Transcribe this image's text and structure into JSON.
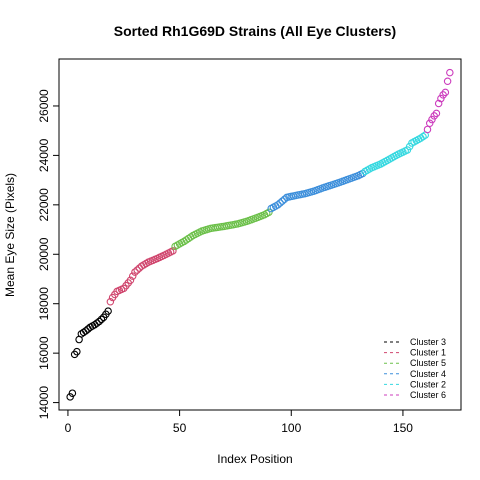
{
  "chart_data": {
    "type": "scatter",
    "title": "Sorted Rh1G69D Strains (All Eye Clusters)",
    "xlabel": "Index Position",
    "ylabel": "Mean Eye Size (Pixels)",
    "xlim": [
      -4,
      176
    ],
    "ylim": [
      13700,
      27900
    ],
    "xticks": [
      0,
      50,
      100,
      150
    ],
    "yticks": [
      14000,
      16000,
      18000,
      20000,
      22000,
      24000,
      26000
    ],
    "grid": false,
    "legend_position": "bottom-right",
    "marker": "open-circle",
    "series": [
      {
        "name": "Cluster 3",
        "color": "#000000",
        "index_range": [
          1,
          18
        ],
        "anchors": [
          [
            1,
            14230
          ],
          [
            2,
            14380
          ],
          [
            3,
            15950
          ],
          [
            4,
            16060
          ],
          [
            5,
            16550
          ],
          [
            6,
            16780
          ],
          [
            8,
            16900
          ],
          [
            10,
            17050
          ],
          [
            12,
            17150
          ],
          [
            14,
            17280
          ],
          [
            16,
            17450
          ],
          [
            18,
            17700
          ]
        ]
      },
      {
        "name": "Cluster 1",
        "color": "#D0466E",
        "index_range": [
          19,
          47
        ],
        "anchors": [
          [
            19,
            18080
          ],
          [
            20,
            18250
          ],
          [
            22,
            18500
          ],
          [
            25,
            18620
          ],
          [
            28,
            18950
          ],
          [
            30,
            19280
          ],
          [
            33,
            19520
          ],
          [
            36,
            19680
          ],
          [
            40,
            19830
          ],
          [
            44,
            20000
          ],
          [
            47,
            20140
          ]
        ]
      },
      {
        "name": "Cluster 5",
        "color": "#6CC04A",
        "index_range": [
          48,
          90
        ],
        "anchors": [
          [
            48,
            20320
          ],
          [
            52,
            20520
          ],
          [
            56,
            20760
          ],
          [
            60,
            20940
          ],
          [
            64,
            21050
          ],
          [
            70,
            21130
          ],
          [
            76,
            21230
          ],
          [
            80,
            21330
          ],
          [
            84,
            21460
          ],
          [
            88,
            21600
          ],
          [
            90,
            21700
          ]
        ]
      },
      {
        "name": "Cluster 4",
        "color": "#3D8FDB",
        "index_range": [
          91,
          132
        ],
        "anchors": [
          [
            91,
            21850
          ],
          [
            94,
            22000
          ],
          [
            96,
            22150
          ],
          [
            98,
            22300
          ],
          [
            102,
            22380
          ],
          [
            106,
            22450
          ],
          [
            110,
            22550
          ],
          [
            114,
            22680
          ],
          [
            118,
            22800
          ],
          [
            122,
            22920
          ],
          [
            126,
            23050
          ],
          [
            130,
            23180
          ],
          [
            132,
            23270
          ]
        ]
      },
      {
        "name": "Cluster 2",
        "color": "#35D8E0",
        "index_range": [
          133,
          160
        ],
        "anchors": [
          [
            133,
            23350
          ],
          [
            136,
            23500
          ],
          [
            140,
            23650
          ],
          [
            144,
            23850
          ],
          [
            148,
            24050
          ],
          [
            152,
            24220
          ],
          [
            154,
            24500
          ],
          [
            156,
            24600
          ],
          [
            158,
            24700
          ],
          [
            160,
            24820
          ]
        ]
      },
      {
        "name": "Cluster 6",
        "color": "#CC3CBD",
        "index_range": [
          161,
          171
        ],
        "anchors": [
          [
            161,
            25050
          ],
          [
            162,
            25300
          ],
          [
            163,
            25450
          ],
          [
            164,
            25600
          ],
          [
            165,
            25700
          ],
          [
            166,
            26100
          ],
          [
            167,
            26300
          ],
          [
            168,
            26450
          ],
          [
            169,
            26550
          ],
          [
            170,
            27000
          ],
          [
            171,
            27350
          ]
        ]
      }
    ]
  }
}
